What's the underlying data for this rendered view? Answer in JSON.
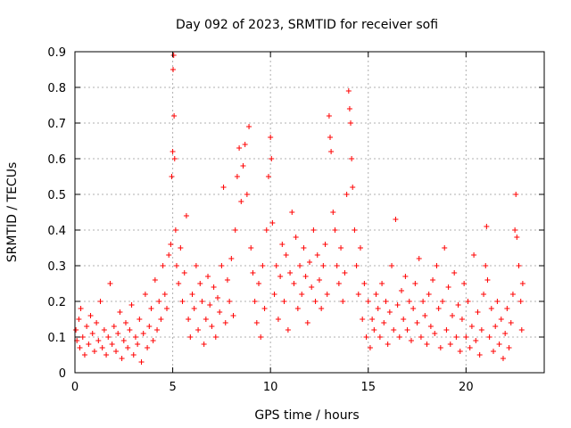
{
  "chart_data": {
    "type": "scatter",
    "title": "Day 092 of 2023, SRMTID for receiver sofi",
    "xlabel": "GPS time / hours",
    "ylabel": "SRMTID / TECUs",
    "xlim": [
      0,
      24
    ],
    "ylim": [
      0,
      0.9
    ],
    "xticks": [
      0,
      5,
      10,
      15,
      20
    ],
    "xtick_labels": [
      "0",
      "5",
      "10",
      "15",
      "20"
    ],
    "yticks": [
      0,
      0.1,
      0.2,
      0.3,
      0.4,
      0.5,
      0.6,
      0.7,
      0.8,
      0.9
    ],
    "ytick_labels": [
      "0",
      "0.1",
      "0.2",
      "0.3",
      "0.4",
      "0.5",
      "0.6",
      "0.7",
      "0.8",
      "0.9"
    ],
    "grid": true,
    "marker": "+",
    "color": "#ff0000",
    "series": [
      {
        "name": "SRMTID",
        "points": [
          [
            0.05,
            0.12
          ],
          [
            0.1,
            0.09
          ],
          [
            0.2,
            0.15
          ],
          [
            0.25,
            0.07
          ],
          [
            0.3,
            0.18
          ],
          [
            0.4,
            0.1
          ],
          [
            0.5,
            0.05
          ],
          [
            0.6,
            0.13
          ],
          [
            0.7,
            0.08
          ],
          [
            0.8,
            0.16
          ],
          [
            0.9,
            0.11
          ],
          [
            1.0,
            0.06
          ],
          [
            1.1,
            0.14
          ],
          [
            1.2,
            0.09
          ],
          [
            1.3,
            0.2
          ],
          [
            1.4,
            0.07
          ],
          [
            1.5,
            0.12
          ],
          [
            1.6,
            0.05
          ],
          [
            1.7,
            0.1
          ],
          [
            1.8,
            0.25
          ],
          [
            1.9,
            0.08
          ],
          [
            2.0,
            0.13
          ],
          [
            2.1,
            0.06
          ],
          [
            2.2,
            0.11
          ],
          [
            2.3,
            0.17
          ],
          [
            2.4,
            0.04
          ],
          [
            2.5,
            0.09
          ],
          [
            2.6,
            0.14
          ],
          [
            2.7,
            0.07
          ],
          [
            2.8,
            0.12
          ],
          [
            2.9,
            0.19
          ],
          [
            3.0,
            0.05
          ],
          [
            3.1,
            0.1
          ],
          [
            3.2,
            0.08
          ],
          [
            3.3,
            0.15
          ],
          [
            3.4,
            0.03
          ],
          [
            3.5,
            0.11
          ],
          [
            3.6,
            0.22
          ],
          [
            3.7,
            0.07
          ],
          [
            3.8,
            0.13
          ],
          [
            3.9,
            0.18
          ],
          [
            4.0,
            0.09
          ],
          [
            4.1,
            0.26
          ],
          [
            4.2,
            0.12
          ],
          [
            4.3,
            0.2
          ],
          [
            4.4,
            0.15
          ],
          [
            4.5,
            0.3
          ],
          [
            4.6,
            0.22
          ],
          [
            4.7,
            0.18
          ],
          [
            4.8,
            0.33
          ],
          [
            4.9,
            0.36
          ],
          [
            4.95,
            0.55
          ],
          [
            5.0,
            0.62
          ],
          [
            5.02,
            0.85
          ],
          [
            5.05,
            0.89
          ],
          [
            5.07,
            0.72
          ],
          [
            5.1,
            0.6
          ],
          [
            5.15,
            0.4
          ],
          [
            5.2,
            0.3
          ],
          [
            5.3,
            0.25
          ],
          [
            5.4,
            0.35
          ],
          [
            5.5,
            0.2
          ],
          [
            5.6,
            0.28
          ],
          [
            5.7,
            0.44
          ],
          [
            5.8,
            0.15
          ],
          [
            5.9,
            0.1
          ],
          [
            6.0,
            0.22
          ],
          [
            6.1,
            0.18
          ],
          [
            6.2,
            0.3
          ],
          [
            6.3,
            0.12
          ],
          [
            6.4,
            0.25
          ],
          [
            6.5,
            0.2
          ],
          [
            6.6,
            0.08
          ],
          [
            6.7,
            0.15
          ],
          [
            6.8,
            0.27
          ],
          [
            6.9,
            0.19
          ],
          [
            7.0,
            0.13
          ],
          [
            7.1,
            0.24
          ],
          [
            7.2,
            0.1
          ],
          [
            7.3,
            0.21
          ],
          [
            7.4,
            0.17
          ],
          [
            7.5,
            0.3
          ],
          [
            7.6,
            0.52
          ],
          [
            7.7,
            0.14
          ],
          [
            7.8,
            0.26
          ],
          [
            7.9,
            0.2
          ],
          [
            8.0,
            0.32
          ],
          [
            8.1,
            0.16
          ],
          [
            8.2,
            0.4
          ],
          [
            8.3,
            0.55
          ],
          [
            8.4,
            0.63
          ],
          [
            8.5,
            0.48
          ],
          [
            8.6,
            0.58
          ],
          [
            8.7,
            0.64
          ],
          [
            8.8,
            0.5
          ],
          [
            8.9,
            0.69
          ],
          [
            9.0,
            0.35
          ],
          [
            9.1,
            0.28
          ],
          [
            9.2,
            0.2
          ],
          [
            9.3,
            0.14
          ],
          [
            9.4,
            0.25
          ],
          [
            9.5,
            0.1
          ],
          [
            9.6,
            0.3
          ],
          [
            9.7,
            0.18
          ],
          [
            9.8,
            0.4
          ],
          [
            9.9,
            0.55
          ],
          [
            10.0,
            0.66
          ],
          [
            10.05,
            0.6
          ],
          [
            10.1,
            0.42
          ],
          [
            10.2,
            0.22
          ],
          [
            10.3,
            0.3
          ],
          [
            10.4,
            0.15
          ],
          [
            10.5,
            0.27
          ],
          [
            10.6,
            0.36
          ],
          [
            10.7,
            0.2
          ],
          [
            10.8,
            0.33
          ],
          [
            10.9,
            0.12
          ],
          [
            11.0,
            0.28
          ],
          [
            11.1,
            0.45
          ],
          [
            11.2,
            0.25
          ],
          [
            11.3,
            0.38
          ],
          [
            11.4,
            0.18
          ],
          [
            11.5,
            0.3
          ],
          [
            11.6,
            0.22
          ],
          [
            11.7,
            0.35
          ],
          [
            11.8,
            0.27
          ],
          [
            11.9,
            0.14
          ],
          [
            12.0,
            0.31
          ],
          [
            12.1,
            0.24
          ],
          [
            12.2,
            0.4
          ],
          [
            12.3,
            0.2
          ],
          [
            12.4,
            0.33
          ],
          [
            12.5,
            0.26
          ],
          [
            12.6,
            0.18
          ],
          [
            12.7,
            0.3
          ],
          [
            12.8,
            0.36
          ],
          [
            12.9,
            0.22
          ],
          [
            13.0,
            0.72
          ],
          [
            13.05,
            0.66
          ],
          [
            13.1,
            0.62
          ],
          [
            13.2,
            0.45
          ],
          [
            13.3,
            0.4
          ],
          [
            13.4,
            0.3
          ],
          [
            13.5,
            0.25
          ],
          [
            13.6,
            0.35
          ],
          [
            13.7,
            0.2
          ],
          [
            13.8,
            0.28
          ],
          [
            13.9,
            0.5
          ],
          [
            14.0,
            0.79
          ],
          [
            14.05,
            0.74
          ],
          [
            14.1,
            0.7
          ],
          [
            14.15,
            0.6
          ],
          [
            14.2,
            0.52
          ],
          [
            14.3,
            0.4
          ],
          [
            14.4,
            0.3
          ],
          [
            14.5,
            0.22
          ],
          [
            14.6,
            0.35
          ],
          [
            14.7,
            0.15
          ],
          [
            14.8,
            0.25
          ],
          [
            14.9,
            0.1
          ],
          [
            15.0,
            0.2
          ],
          [
            15.1,
            0.07
          ],
          [
            15.2,
            0.15
          ],
          [
            15.3,
            0.12
          ],
          [
            15.4,
            0.22
          ],
          [
            15.5,
            0.18
          ],
          [
            15.6,
            0.1
          ],
          [
            15.7,
            0.25
          ],
          [
            15.8,
            0.14
          ],
          [
            15.9,
            0.2
          ],
          [
            16.0,
            0.08
          ],
          [
            16.1,
            0.17
          ],
          [
            16.2,
            0.3
          ],
          [
            16.3,
            0.12
          ],
          [
            16.4,
            0.43
          ],
          [
            16.5,
            0.19
          ],
          [
            16.6,
            0.1
          ],
          [
            16.7,
            0.23
          ],
          [
            16.8,
            0.15
          ],
          [
            16.9,
            0.27
          ],
          [
            17.0,
            0.12
          ],
          [
            17.1,
            0.2
          ],
          [
            17.2,
            0.09
          ],
          [
            17.3,
            0.18
          ],
          [
            17.4,
            0.25
          ],
          [
            17.5,
            0.14
          ],
          [
            17.6,
            0.32
          ],
          [
            17.7,
            0.1
          ],
          [
            17.8,
            0.2
          ],
          [
            17.9,
            0.16
          ],
          [
            18.0,
            0.08
          ],
          [
            18.1,
            0.22
          ],
          [
            18.2,
            0.13
          ],
          [
            18.3,
            0.26
          ],
          [
            18.4,
            0.11
          ],
          [
            18.5,
            0.3
          ],
          [
            18.6,
            0.18
          ],
          [
            18.7,
            0.07
          ],
          [
            18.8,
            0.2
          ],
          [
            18.9,
            0.35
          ],
          [
            19.0,
            0.12
          ],
          [
            19.1,
            0.24
          ],
          [
            19.2,
            0.08
          ],
          [
            19.3,
            0.16
          ],
          [
            19.4,
            0.28
          ],
          [
            19.5,
            0.1
          ],
          [
            19.6,
            0.19
          ],
          [
            19.7,
            0.06
          ],
          [
            19.8,
            0.15
          ],
          [
            19.9,
            0.25
          ],
          [
            20.0,
            0.1
          ],
          [
            20.1,
            0.2
          ],
          [
            20.2,
            0.07
          ],
          [
            20.3,
            0.13
          ],
          [
            20.4,
            0.33
          ],
          [
            20.5,
            0.09
          ],
          [
            20.6,
            0.17
          ],
          [
            20.7,
            0.05
          ],
          [
            20.8,
            0.12
          ],
          [
            20.9,
            0.22
          ],
          [
            21.0,
            0.3
          ],
          [
            21.05,
            0.41
          ],
          [
            21.1,
            0.26
          ],
          [
            21.2,
            0.1
          ],
          [
            21.3,
            0.18
          ],
          [
            21.4,
            0.06
          ],
          [
            21.5,
            0.13
          ],
          [
            21.6,
            0.2
          ],
          [
            21.7,
            0.08
          ],
          [
            21.8,
            0.15
          ],
          [
            21.9,
            0.04
          ],
          [
            22.0,
            0.11
          ],
          [
            22.1,
            0.18
          ],
          [
            22.2,
            0.07
          ],
          [
            22.3,
            0.14
          ],
          [
            22.4,
            0.22
          ],
          [
            22.5,
            0.4
          ],
          [
            22.55,
            0.5
          ],
          [
            22.6,
            0.38
          ],
          [
            22.7,
            0.3
          ],
          [
            22.8,
            0.2
          ],
          [
            22.85,
            0.12
          ],
          [
            22.9,
            0.25
          ]
        ]
      }
    ]
  }
}
